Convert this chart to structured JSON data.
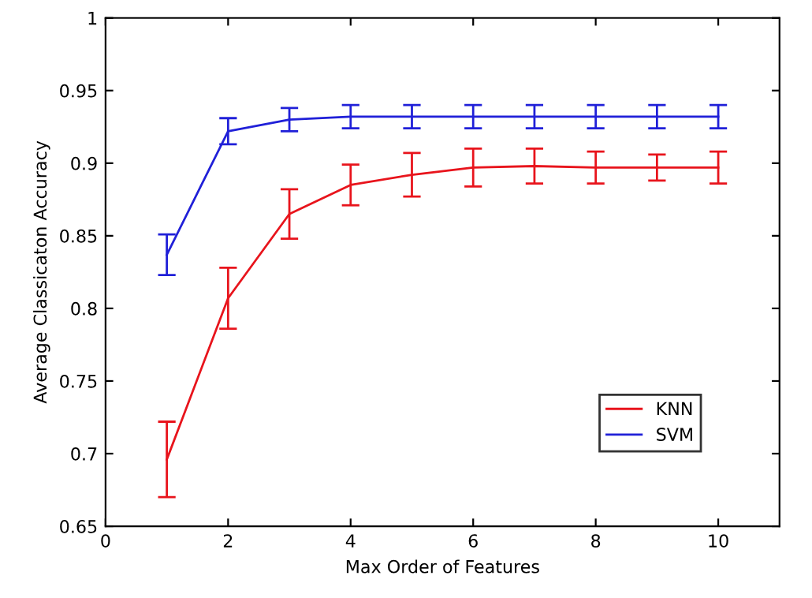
{
  "chart_data": {
    "type": "line",
    "xlabel": "Max Order of Features",
    "ylabel": "Average Classicaton Accuracy",
    "x": [
      1,
      2,
      3,
      4,
      5,
      6,
      7,
      8,
      9,
      10
    ],
    "series": [
      {
        "name": "KNN",
        "color": "#e8141c",
        "values": [
          0.696,
          0.807,
          0.865,
          0.885,
          0.892,
          0.897,
          0.898,
          0.897,
          0.897,
          0.897
        ],
        "errors": [
          0.026,
          0.021,
          0.017,
          0.014,
          0.015,
          0.013,
          0.012,
          0.011,
          0.009,
          0.011
        ]
      },
      {
        "name": "SVM",
        "color": "#2020d8",
        "values": [
          0.837,
          0.922,
          0.93,
          0.932,
          0.932,
          0.932,
          0.932,
          0.932,
          0.932,
          0.932
        ],
        "errors": [
          0.014,
          0.009,
          0.008,
          0.008,
          0.008,
          0.008,
          0.008,
          0.008,
          0.008,
          0.008
        ]
      }
    ],
    "xlim": [
      0,
      11
    ],
    "xticks": [
      0,
      2,
      4,
      6,
      8,
      10
    ],
    "ylim": [
      0.65,
      1
    ],
    "yticks": [
      0.65,
      0.7,
      0.75,
      0.8,
      0.85,
      0.9,
      0.95,
      1
    ],
    "grid": false,
    "legend": "bottom right",
    "marker": "none",
    "line_style": "solid"
  }
}
